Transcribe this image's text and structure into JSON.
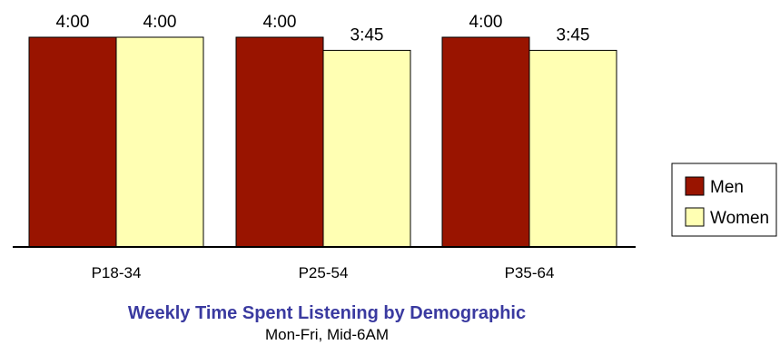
{
  "colors": {
    "men": "#991400",
    "women": "#ffffb3",
    "title": "#3a3aa0"
  },
  "chart_data": {
    "type": "bar",
    "title": "Weekly Time Spent Listening by Demographic",
    "subtitle": "Mon-Fri, Mid-6AM",
    "categories": [
      "P18-34",
      "P25-54",
      "P35-64"
    ],
    "series": [
      {
        "name": "Men",
        "values": [
          4.0,
          4.0,
          4.0
        ],
        "labels": [
          "4:00",
          "4:00",
          "4:00"
        ]
      },
      {
        "name": "Women",
        "values": [
          4.0,
          3.75,
          3.75
        ],
        "labels": [
          "4:00",
          "3:45",
          "3:45"
        ]
      }
    ],
    "ylim": [
      0,
      4
    ],
    "grid": false,
    "legend": "right"
  }
}
